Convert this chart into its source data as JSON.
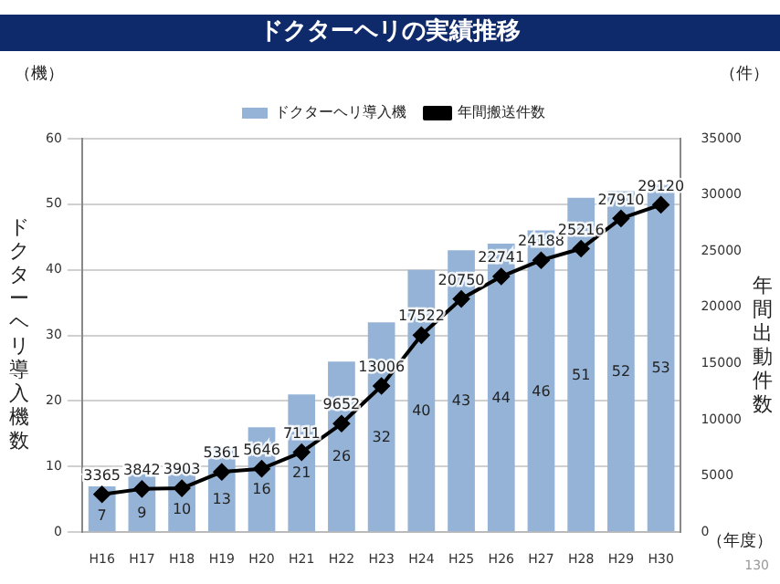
{
  "chart_data": {
    "type": "bar",
    "title": "ドクターヘリの実績推移",
    "categories": [
      "H16",
      "H17",
      "H18",
      "H19",
      "H20",
      "H21",
      "H22",
      "H23",
      "H24",
      "H25",
      "H26",
      "H27",
      "H28",
      "H29",
      "H30"
    ],
    "series": [
      {
        "name": "ドクターヘリ導入機",
        "color": "#95b3d7",
        "values": [
          7,
          9,
          10,
          13,
          16,
          21,
          26,
          32,
          40,
          43,
          44,
          46,
          51,
          52,
          53
        ]
      },
      {
        "name": "年間搬送件数",
        "type": "line",
        "axis": "y2",
        "color": "#000000",
        "marker": "diamond",
        "values": [
          3365,
          3842,
          3903,
          5361,
          5646,
          7111,
          9652,
          13006,
          17522,
          20750,
          22741,
          24188,
          25216,
          27910,
          29120
        ]
      }
    ],
    "ylabel": "ドクターヘリ導入機数",
    "y2label": "年間出動件数",
    "ylim": [
      0,
      60
    ],
    "yticks": [
      0,
      10,
      20,
      30,
      40,
      50,
      60
    ],
    "y2lim": [
      0,
      35000
    ],
    "y2ticks": [
      0,
      5000,
      10000,
      15000,
      20000,
      25000,
      30000,
      35000
    ],
    "grid": "y",
    "legend": "top",
    "data_labels": true,
    "annotations": [
      "（機）",
      "（件）",
      "（年度）",
      "130"
    ]
  }
}
